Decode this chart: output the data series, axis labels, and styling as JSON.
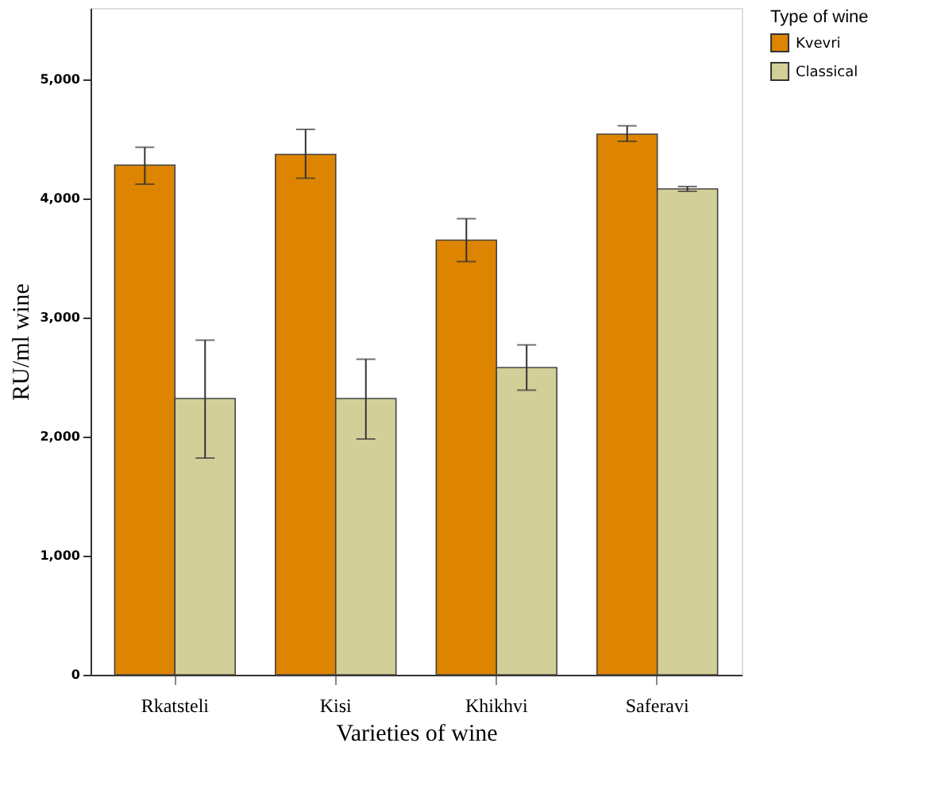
{
  "chart_data": {
    "type": "bar",
    "xlabel": "Varieties of wine",
    "ylabel": "RU/ml wine",
    "legend_title": "Type of wine",
    "categories": [
      "Rkatsteli",
      "Kisi",
      "Khikhvi",
      "Saferavi"
    ],
    "series": [
      {
        "name": "Kvevri",
        "color": "#dd8400",
        "values": [
          4280,
          4370,
          3650,
          4540
        ],
        "errors": [
          [
            4120,
            4430
          ],
          [
            4170,
            4580
          ],
          [
            3470,
            3830
          ],
          [
            4480,
            4610
          ]
        ]
      },
      {
        "name": "Classical",
        "color": "#d3cf98",
        "values": [
          2320,
          2320,
          2580,
          4080
        ],
        "errors": [
          [
            1820,
            2810
          ],
          [
            1980,
            2650
          ],
          [
            2390,
            2770
          ],
          [
            4060,
            4100
          ]
        ]
      }
    ],
    "ylim": [
      0,
      5600
    ],
    "yticks": [
      0,
      {
        "value": 1000,
        "label": "1,000"
      },
      {
        "value": 2000,
        "label": "2,000"
      },
      {
        "value": 3000,
        "label": "3,000"
      },
      {
        "value": 4000,
        "label": "4,000"
      },
      {
        "value": 5000,
        "label": "5,000"
      }
    ],
    "grid": false,
    "legend": "top right"
  }
}
